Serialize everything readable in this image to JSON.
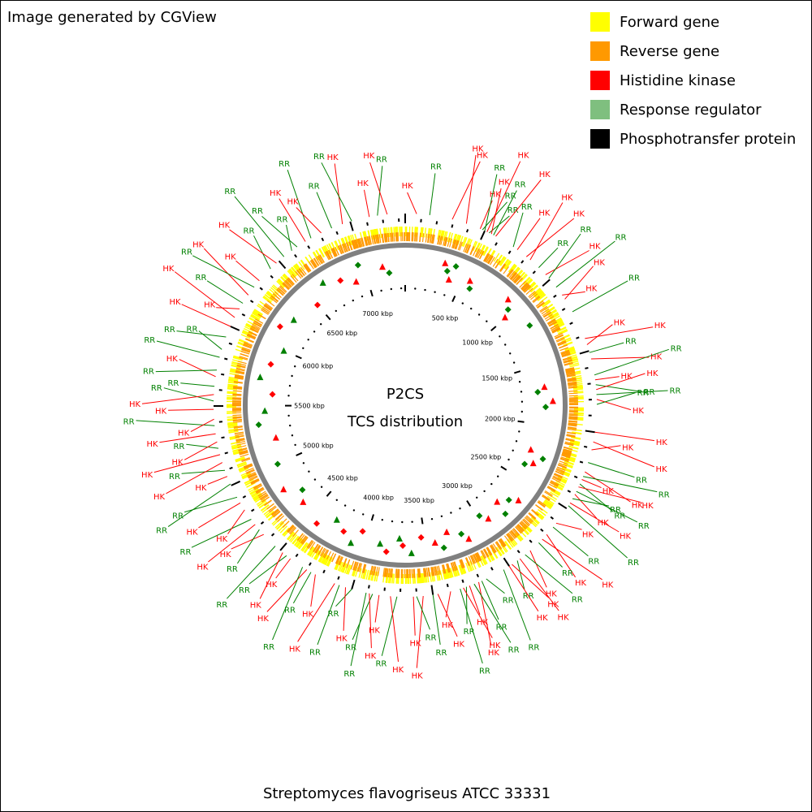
{
  "credit": "Image generated by CGView",
  "center": {
    "line1": "P2CS",
    "line2": "TCS distribution"
  },
  "organism": "Streptomyces flavogriseus ATCC 33331",
  "legend": [
    {
      "label": "Forward gene",
      "color": "#ffff00"
    },
    {
      "label": "Reverse gene",
      "color": "#ff9900"
    },
    {
      "label": "Histidine kinase",
      "color": "#ff0000"
    },
    {
      "label": "Response regulator",
      "color": "#7fbf7f"
    },
    {
      "label": "Phosphotransfer protein",
      "color": "#000000"
    }
  ],
  "colors": {
    "forward": "#ffff00",
    "reverse": "#ff9900",
    "hk": "#ff0000",
    "rr": "#008000",
    "backbone": "#808080"
  },
  "chart_data": {
    "type": "circular-genome-map",
    "genome_length_kbp": 7340,
    "tick_labels": [
      {
        "pos_kbp": 500,
        "label": "500 kbp"
      },
      {
        "pos_kbp": 1000,
        "label": "1000 kbp"
      },
      {
        "pos_kbp": 1500,
        "label": "1500 kbp"
      },
      {
        "pos_kbp": 2000,
        "label": "2000 kbp"
      },
      {
        "pos_kbp": 2500,
        "label": "2500 kbp"
      },
      {
        "pos_kbp": 3000,
        "label": "3000 kbp"
      },
      {
        "pos_kbp": 3500,
        "label": "3500 kbp"
      },
      {
        "pos_kbp": 4000,
        "label": "4000 kbp"
      },
      {
        "pos_kbp": 4500,
        "label": "4500 kbp"
      },
      {
        "pos_kbp": 5000,
        "label": "5000 kbp"
      },
      {
        "pos_kbp": 5500,
        "label": "5500 kbp"
      },
      {
        "pos_kbp": 6000,
        "label": "6000 kbp"
      },
      {
        "pos_kbp": 6500,
        "label": "6500 kbp"
      },
      {
        "pos_kbp": 7000,
        "label": "7000 kbp"
      }
    ],
    "genes": [
      {
        "label": "HK",
        "type": "HK",
        "pos_kbp": 70
      },
      {
        "label": "RR",
        "type": "RR",
        "pos_kbp": 150
      },
      {
        "label": "HK",
        "type": "HK",
        "pos_kbp": 290
      },
      {
        "label": "HK",
        "type": "HK",
        "pos_kbp": 380
      },
      {
        "label": "HK",
        "type": "HK",
        "pos_kbp": 470
      },
      {
        "label": "RR",
        "type": "RR",
        "pos_kbp": 485
      },
      {
        "label": "RR",
        "type": "RR",
        "pos_kbp": 500
      },
      {
        "label": "HK",
        "type": "HK",
        "pos_kbp": 515
      },
      {
        "label": "RR",
        "type": "RR",
        "pos_kbp": 530
      },
      {
        "label": "HK",
        "type": "HK",
        "pos_kbp": 545
      },
      {
        "label": "RR",
        "type": "RR",
        "pos_kbp": 560
      },
      {
        "label": "HK",
        "type": "HK",
        "pos_kbp": 575
      },
      {
        "label": "RR",
        "type": "RR",
        "pos_kbp": 700
      },
      {
        "label": "HK",
        "type": "HK",
        "pos_kbp": 730
      },
      {
        "label": "HK",
        "type": "HK",
        "pos_kbp": 800
      },
      {
        "label": "HK",
        "type": "HK",
        "pos_kbp": 830
      },
      {
        "label": "RR",
        "type": "RR",
        "pos_kbp": 900
      },
      {
        "label": "HK",
        "type": "HK",
        "pos_kbp": 960
      },
      {
        "label": "RR",
        "type": "RR",
        "pos_kbp": 990
      },
      {
        "label": "RR",
        "type": "RR",
        "pos_kbp": 1060
      },
      {
        "label": "HK",
        "type": "HK",
        "pos_kbp": 1120
      },
      {
        "label": "HK",
        "type": "HK",
        "pos_kbp": 1150
      },
      {
        "label": "RR",
        "type": "RR",
        "pos_kbp": 1240
      },
      {
        "label": "HK",
        "type": "HK",
        "pos_kbp": 1420
      },
      {
        "label": "HK",
        "type": "HK",
        "pos_kbp": 1460
      },
      {
        "label": "RR",
        "type": "RR",
        "pos_kbp": 1510
      },
      {
        "label": "HK",
        "type": "HK",
        "pos_kbp": 1550
      },
      {
        "label": "RR",
        "type": "RR",
        "pos_kbp": 1650
      },
      {
        "label": "HK",
        "type": "HK",
        "pos_kbp": 1680
      },
      {
        "label": "RR",
        "type": "RR",
        "pos_kbp": 1710
      },
      {
        "label": "HK",
        "type": "HK",
        "pos_kbp": 1740
      },
      {
        "label": "RR",
        "type": "RR",
        "pos_kbp": 1770
      },
      {
        "label": "HK",
        "type": "HK",
        "pos_kbp": 1800
      },
      {
        "label": "RR",
        "type": "RR",
        "pos_kbp": 1830
      },
      {
        "label": "HK",
        "type": "HK",
        "pos_kbp": 2000
      },
      {
        "label": "HK",
        "type": "HK",
        "pos_kbp": 2060
      },
      {
        "label": "HK",
        "type": "HK",
        "pos_kbp": 2110
      },
      {
        "label": "RR",
        "type": "RR",
        "pos_kbp": 2190
      },
      {
        "label": "HK",
        "type": "HK",
        "pos_kbp": 2250
      },
      {
        "label": "RR",
        "type": "RR",
        "pos_kbp": 2280
      },
      {
        "label": "HK",
        "type": "HK",
        "pos_kbp": 2300
      },
      {
        "label": "RR",
        "type": "RR",
        "pos_kbp": 2330
      },
      {
        "label": "HK",
        "type": "HK",
        "pos_kbp": 2350
      },
      {
        "label": "RR",
        "type": "RR",
        "pos_kbp": 2380
      },
      {
        "label": "HK",
        "type": "HK",
        "pos_kbp": 2400
      },
      {
        "label": "RR",
        "type": "RR",
        "pos_kbp": 2430
      },
      {
        "label": "HK",
        "type": "HK",
        "pos_kbp": 2460
      },
      {
        "label": "RR",
        "type": "RR",
        "pos_kbp": 2480
      },
      {
        "label": "HK",
        "type": "HK",
        "pos_kbp": 2610
      },
      {
        "label": "RR",
        "type": "RR",
        "pos_kbp": 2640
      },
      {
        "label": "HK",
        "type": "HK",
        "pos_kbp": 2700
      },
      {
        "label": "HK",
        "type": "HK",
        "pos_kbp": 2740
      },
      {
        "label": "RR",
        "type": "RR",
        "pos_kbp": 2770
      },
      {
        "label": "HK",
        "type": "HK",
        "pos_kbp": 2840
      },
      {
        "label": "RR",
        "type": "RR",
        "pos_kbp": 2880
      },
      {
        "label": "HK",
        "type": "HK",
        "pos_kbp": 2920
      },
      {
        "label": "RR",
        "type": "RR",
        "pos_kbp": 2940
      },
      {
        "label": "HK",
        "type": "HK",
        "pos_kbp": 2980
      },
      {
        "label": "HK",
        "type": "HK",
        "pos_kbp": 3000
      },
      {
        "label": "RR",
        "type": "RR",
        "pos_kbp": 3040
      },
      {
        "label": "RR",
        "type": "RR",
        "pos_kbp": 3160
      },
      {
        "label": "RR",
        "type": "RR",
        "pos_kbp": 3190
      },
      {
        "label": "HK",
        "type": "HK",
        "pos_kbp": 3210
      },
      {
        "label": "RR",
        "type": "RR",
        "pos_kbp": 3240
      },
      {
        "label": "HK",
        "type": "HK",
        "pos_kbp": 3270
      },
      {
        "label": "RR",
        "type": "RR",
        "pos_kbp": 3290
      },
      {
        "label": "HK",
        "type": "HK",
        "pos_kbp": 3310
      },
      {
        "label": "RR",
        "type": "RR",
        "pos_kbp": 3330
      },
      {
        "label": "HK",
        "type": "HK",
        "pos_kbp": 3390
      },
      {
        "label": "HK",
        "type": "HK",
        "pos_kbp": 3470
      },
      {
        "label": "RR",
        "type": "RR",
        "pos_kbp": 3500
      },
      {
        "label": "HK",
        "type": "HK",
        "pos_kbp": 3560
      },
      {
        "label": "RR",
        "type": "RR",
        "pos_kbp": 3600
      },
      {
        "label": "HK",
        "type": "HK",
        "pos_kbp": 3620
      },
      {
        "label": "RR",
        "type": "RR",
        "pos_kbp": 3720
      },
      {
        "label": "HK",
        "type": "HK",
        "pos_kbp": 3760
      },
      {
        "label": "HK",
        "type": "HK",
        "pos_kbp": 3830
      },
      {
        "label": "RR",
        "type": "RR",
        "pos_kbp": 3870
      },
      {
        "label": "HK",
        "type": "HK",
        "pos_kbp": 3890
      },
      {
        "label": "RR",
        "type": "RR",
        "pos_kbp": 3910
      },
      {
        "label": "RR",
        "type": "RR",
        "pos_kbp": 4000
      },
      {
        "label": "HK",
        "type": "HK",
        "pos_kbp": 4040
      },
      {
        "label": "RR",
        "type": "RR",
        "pos_kbp": 4080
      },
      {
        "label": "HK",
        "type": "HK",
        "pos_kbp": 4110
      },
      {
        "label": "HK",
        "type": "HK",
        "pos_kbp": 4240
      },
      {
        "label": "RR",
        "type": "RR",
        "pos_kbp": 4270
      },
      {
        "label": "HK",
        "type": "HK",
        "pos_kbp": 4300
      },
      {
        "label": "RR",
        "type": "RR",
        "pos_kbp": 4330
      },
      {
        "label": "HK",
        "type": "HK",
        "pos_kbp": 4420
      },
      {
        "label": "RR",
        "type": "RR",
        "pos_kbp": 4450
      },
      {
        "label": "HK",
        "type": "HK",
        "pos_kbp": 4480
      },
      {
        "label": "RR",
        "type": "RR",
        "pos_kbp": 4540
      },
      {
        "label": "HK",
        "type": "HK",
        "pos_kbp": 4640
      },
      {
        "label": "RR",
        "type": "RR",
        "pos_kbp": 4680
      },
      {
        "label": "HK",
        "type": "HK",
        "pos_kbp": 4720
      },
      {
        "label": "RR",
        "type": "RR",
        "pos_kbp": 4760
      },
      {
        "label": "HK",
        "type": "HK",
        "pos_kbp": 4830
      },
      {
        "label": "HK",
        "type": "HK",
        "pos_kbp": 4880
      },
      {
        "label": "RR",
        "type": "RR",
        "pos_kbp": 4920
      },
      {
        "label": "RR",
        "type": "RR",
        "pos_kbp": 5010
      },
      {
        "label": "HK",
        "type": "HK",
        "pos_kbp": 5060
      },
      {
        "label": "RR",
        "type": "RR",
        "pos_kbp": 5100
      },
      {
        "label": "HK",
        "type": "HK",
        "pos_kbp": 5150
      },
      {
        "label": "HK",
        "type": "HK",
        "pos_kbp": 5200
      },
      {
        "label": "RR",
        "type": "RR",
        "pos_kbp": 5240
      },
      {
        "label": "HK",
        "type": "HK",
        "pos_kbp": 5280
      },
      {
        "label": "HK",
        "type": "HK",
        "pos_kbp": 5330
      },
      {
        "label": "RR",
        "type": "RR",
        "pos_kbp": 5380
      },
      {
        "label": "HK",
        "type": "HK",
        "pos_kbp": 5420
      },
      {
        "label": "HK",
        "type": "HK",
        "pos_kbp": 5480
      },
      {
        "label": "RR",
        "type": "RR",
        "pos_kbp": 5530
      },
      {
        "label": "HK",
        "type": "HK",
        "pos_kbp": 5570
      },
      {
        "label": "RR",
        "type": "RR",
        "pos_kbp": 5620
      },
      {
        "label": "HK",
        "type": "HK",
        "pos_kbp": 5680
      },
      {
        "label": "RR",
        "type": "RR",
        "pos_kbp": 5720
      },
      {
        "label": "RR",
        "type": "RR",
        "pos_kbp": 5800
      },
      {
        "label": "RR",
        "type": "RR",
        "pos_kbp": 5850
      },
      {
        "label": "RR",
        "type": "RR",
        "pos_kbp": 5930
      },
      {
        "label": "HK",
        "type": "HK",
        "pos_kbp": 6000
      },
      {
        "label": "HK",
        "type": "HK",
        "pos_kbp": 6060
      },
      {
        "label": "HK",
        "type": "HK",
        "pos_kbp": 6120
      },
      {
        "label": "RR",
        "type": "RR",
        "pos_kbp": 6160
      },
      {
        "label": "HK",
        "type": "HK",
        "pos_kbp": 6220
      },
      {
        "label": "RR",
        "type": "RR",
        "pos_kbp": 6280
      },
      {
        "label": "HK",
        "type": "HK",
        "pos_kbp": 6330
      },
      {
        "label": "RR",
        "type": "RR",
        "pos_kbp": 6430
      },
      {
        "label": "HK",
        "type": "HK",
        "pos_kbp": 6480
      },
      {
        "label": "RR",
        "type": "RR",
        "pos_kbp": 6540
      },
      {
        "label": "RR",
        "type": "RR",
        "pos_kbp": 6600
      },
      {
        "label": "RR",
        "type": "RR",
        "pos_kbp": 6640
      },
      {
        "label": "HK",
        "type": "HK",
        "pos_kbp": 6700
      },
      {
        "label": "RR",
        "type": "RR",
        "pos_kbp": 6740
      },
      {
        "label": "HK",
        "type": "HK",
        "pos_kbp": 6810
      },
      {
        "label": "RR",
        "type": "RR",
        "pos_kbp": 6880
      },
      {
        "label": "HK",
        "type": "HK",
        "pos_kbp": 6950
      },
      {
        "label": "RR",
        "type": "RR",
        "pos_kbp": 7010
      },
      {
        "label": "HK",
        "type": "HK",
        "pos_kbp": 7120
      },
      {
        "label": "RR",
        "type": "RR",
        "pos_kbp": 7170
      },
      {
        "label": "HK",
        "type": "HK",
        "pos_kbp": 7230
      }
    ],
    "tcs_markers": [
      {
        "type": "HK",
        "pos_kbp": 320
      },
      {
        "type": "RR",
        "pos_kbp": 355
      },
      {
        "type": "HK",
        "pos_kbp": 390
      },
      {
        "type": "RR",
        "pos_kbp": 410
      },
      {
        "type": "HK",
        "pos_kbp": 560
      },
      {
        "type": "RR",
        "pos_kbp": 590
      },
      {
        "type": "HK",
        "pos_kbp": 900
      },
      {
        "type": "RR",
        "pos_kbp": 960
      },
      {
        "type": "HK",
        "pos_kbp": 990
      },
      {
        "type": "RR",
        "pos_kbp": 1170
      },
      {
        "type": "HK",
        "pos_kbp": 1680
      },
      {
        "type": "RR",
        "pos_kbp": 1720
      },
      {
        "type": "HK",
        "pos_kbp": 1800
      },
      {
        "type": "RR",
        "pos_kbp": 1850
      },
      {
        "type": "HK",
        "pos_kbp": 2230
      },
      {
        "type": "RR",
        "pos_kbp": 2270
      },
      {
        "type": "HK",
        "pos_kbp": 2330
      },
      {
        "type": "RR",
        "pos_kbp": 2370
      },
      {
        "type": "HK",
        "pos_kbp": 2650
      },
      {
        "type": "RR",
        "pos_kbp": 2700
      },
      {
        "type": "HK",
        "pos_kbp": 2780
      },
      {
        "type": "RR",
        "pos_kbp": 2800
      },
      {
        "type": "HK",
        "pos_kbp": 2930
      },
      {
        "type": "RR",
        "pos_kbp": 2980
      },
      {
        "type": "HK",
        "pos_kbp": 3150
      },
      {
        "type": "RR",
        "pos_kbp": 3190
      },
      {
        "type": "HK",
        "pos_kbp": 3300
      },
      {
        "type": "RR",
        "pos_kbp": 3360
      },
      {
        "type": "HK",
        "pos_kbp": 3420
      },
      {
        "type": "HK",
        "pos_kbp": 3530
      },
      {
        "type": "RR",
        "pos_kbp": 3620
      },
      {
        "type": "HK",
        "pos_kbp": 3690
      },
      {
        "type": "RR",
        "pos_kbp": 3720
      },
      {
        "type": "HK",
        "pos_kbp": 3820
      },
      {
        "type": "RR",
        "pos_kbp": 3880
      },
      {
        "type": "HK",
        "pos_kbp": 4050
      },
      {
        "type": "RR",
        "pos_kbp": 4110
      },
      {
        "type": "HK",
        "pos_kbp": 4200
      },
      {
        "type": "RR",
        "pos_kbp": 4300
      },
      {
        "type": "HK",
        "pos_kbp": 4420
      },
      {
        "type": "HK",
        "pos_kbp": 4620
      },
      {
        "type": "RR",
        "pos_kbp": 4700
      },
      {
        "type": "HK",
        "pos_kbp": 4800
      },
      {
        "type": "RR",
        "pos_kbp": 5000
      },
      {
        "type": "HK",
        "pos_kbp": 5220
      },
      {
        "type": "RR",
        "pos_kbp": 5350
      },
      {
        "type": "RR",
        "pos_kbp": 5460
      },
      {
        "type": "HK",
        "pos_kbp": 5600
      },
      {
        "type": "RR",
        "pos_kbp": 5730
      },
      {
        "type": "HK",
        "pos_kbp": 5850
      },
      {
        "type": "RR",
        "pos_kbp": 6000
      },
      {
        "type": "HK",
        "pos_kbp": 6160
      },
      {
        "type": "RR",
        "pos_kbp": 6270
      },
      {
        "type": "HK",
        "pos_kbp": 6500
      },
      {
        "type": "RR",
        "pos_kbp": 6650
      },
      {
        "type": "HK",
        "pos_kbp": 6780
      },
      {
        "type": "HK",
        "pos_kbp": 6900
      },
      {
        "type": "RR",
        "pos_kbp": 6960
      },
      {
        "type": "HK",
        "pos_kbp": 7150
      },
      {
        "type": "RR",
        "pos_kbp": 7200
      }
    ]
  }
}
